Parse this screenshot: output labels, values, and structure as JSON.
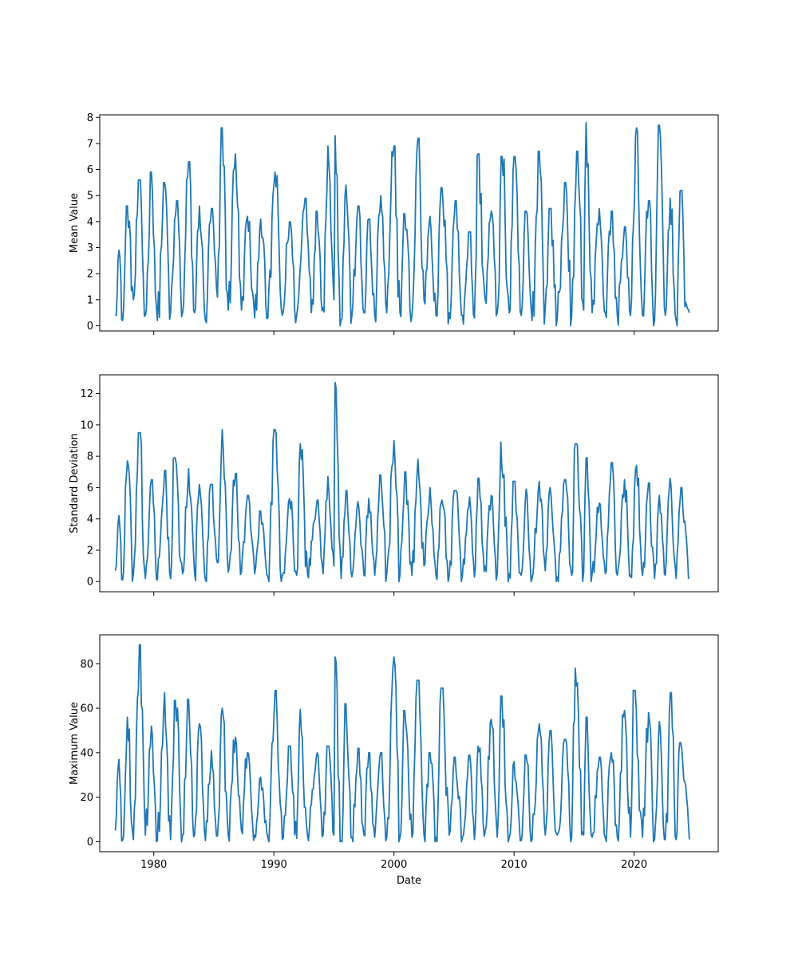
{
  "colors": {
    "line": "#1f77b4",
    "axes": "#000000",
    "background": "#ffffff"
  },
  "chart_data": [
    {
      "type": "line",
      "title": "",
      "xlabel": "",
      "ylabel": "Mean Value",
      "xlim": [
        1975.5,
        2027.0
      ],
      "ylim": [
        -0.2,
        8.1
      ],
      "xticks": [
        1980,
        1990,
        2000,
        2010,
        2020
      ],
      "xtick_labels_visible": false,
      "yticks": [
        0,
        1,
        2,
        3,
        4,
        5,
        6,
        7,
        8
      ],
      "ytick_labels": [
        "0",
        "1",
        "2",
        "3",
        "4",
        "5",
        "6",
        "7",
        "8"
      ],
      "grid": false,
      "anchors": [
        [
          1976.8,
          0.45
        ],
        [
          1977.1,
          2.9
        ],
        [
          1977.4,
          0.2
        ],
        [
          1977.8,
          4.6
        ],
        [
          1978.3,
          1.0
        ],
        [
          1978.8,
          5.6
        ],
        [
          1979.3,
          0.4
        ],
        [
          1979.8,
          5.9
        ],
        [
          1980.3,
          0.2
        ],
        [
          1980.9,
          5.5
        ],
        [
          1981.4,
          0.5
        ],
        [
          1981.9,
          4.8
        ],
        [
          1982.4,
          0.5
        ],
        [
          1982.9,
          6.3
        ],
        [
          1983.4,
          0.5
        ],
        [
          1983.8,
          4.6
        ],
        [
          1984.3,
          0.2
        ],
        [
          1984.8,
          4.5
        ],
        [
          1985.3,
          1.1
        ],
        [
          1985.7,
          7.6
        ],
        [
          1986.2,
          0.6
        ],
        [
          1986.8,
          6.6
        ],
        [
          1987.3,
          0.6
        ],
        [
          1987.8,
          4.2
        ],
        [
          1988.4,
          0.3
        ],
        [
          1988.9,
          4.1
        ],
        [
          1989.5,
          0.3
        ],
        [
          1990.1,
          5.9
        ],
        [
          1990.7,
          0.4
        ],
        [
          1991.3,
          4.0
        ],
        [
          1991.9,
          0.4
        ],
        [
          1992.6,
          4.9
        ],
        [
          1993.2,
          1.0
        ],
        [
          1993.6,
          4.4
        ],
        [
          1994.1,
          0.7
        ],
        [
          1994.5,
          6.9
        ],
        [
          1995.0,
          1.0
        ],
        [
          1995.1,
          7.3
        ],
        [
          1995.6,
          0.2
        ],
        [
          1996.0,
          5.4
        ],
        [
          1996.5,
          0.4
        ],
        [
          1997.0,
          4.6
        ],
        [
          1997.5,
          0.5
        ],
        [
          1997.9,
          4.1
        ],
        [
          1998.4,
          0.4
        ],
        [
          1998.9,
          5.0
        ],
        [
          1999.4,
          0.5
        ],
        [
          2000.0,
          6.9
        ],
        [
          2000.5,
          0.5
        ],
        [
          2000.9,
          4.3
        ],
        [
          2001.5,
          0.4
        ],
        [
          2002.0,
          7.2
        ],
        [
          2002.5,
          1.0
        ],
        [
          2003.0,
          4.2
        ],
        [
          2003.5,
          0.4
        ],
        [
          2004.0,
          5.3
        ],
        [
          2004.6,
          0.5
        ],
        [
          2005.1,
          4.8
        ],
        [
          2005.7,
          0.4
        ],
        [
          2006.3,
          3.6
        ],
        [
          2006.7,
          0.3
        ],
        [
          2007.0,
          6.6
        ],
        [
          2007.6,
          1.0
        ],
        [
          2008.1,
          4.4
        ],
        [
          2008.6,
          0.5
        ],
        [
          2009.0,
          6.5
        ],
        [
          2009.6,
          0.5
        ],
        [
          2010.0,
          6.5
        ],
        [
          2010.6,
          0.4
        ],
        [
          2011.0,
          4.4
        ],
        [
          2011.5,
          0.2
        ],
        [
          2012.1,
          6.7
        ],
        [
          2012.6,
          0.7
        ],
        [
          2013.0,
          4.5
        ],
        [
          2013.6,
          0.3
        ],
        [
          2014.3,
          5.5
        ],
        [
          2014.8,
          0.4
        ],
        [
          2015.3,
          6.7
        ],
        [
          2015.8,
          0.6
        ],
        [
          2016.0,
          7.8
        ],
        [
          2016.5,
          0.5
        ],
        [
          2017.1,
          4.5
        ],
        [
          2017.6,
          0.5
        ],
        [
          2018.1,
          4.4
        ],
        [
          2018.6,
          0.4
        ],
        [
          2019.2,
          3.8
        ],
        [
          2019.7,
          0.4
        ],
        [
          2020.2,
          7.6
        ],
        [
          2020.7,
          0.4
        ],
        [
          2021.2,
          4.8
        ],
        [
          2021.7,
          0.2
        ],
        [
          2022.1,
          7.7
        ],
        [
          2022.6,
          0.4
        ],
        [
          2023.0,
          4.9
        ],
        [
          2023.5,
          0.2
        ],
        [
          2023.9,
          5.2
        ],
        [
          2024.3,
          0.9
        ],
        [
          2024.6,
          0.5
        ]
      ]
    },
    {
      "type": "line",
      "title": "",
      "xlabel": "",
      "ylabel": "Standard Deviation",
      "xlim": [
        1975.5,
        2027.0
      ],
      "ylim": [
        -0.65,
        13.2
      ],
      "xticks": [
        1980,
        1990,
        2000,
        2010,
        2020
      ],
      "xtick_labels_visible": false,
      "yticks": [
        0,
        2,
        4,
        6,
        8,
        10,
        12
      ],
      "ytick_labels": [
        "0",
        "2",
        "4",
        "6",
        "8",
        "10",
        "12"
      ],
      "grid": false,
      "anchors": [
        [
          1976.8,
          0.7
        ],
        [
          1977.1,
          4.2
        ],
        [
          1977.4,
          0.1
        ],
        [
          1977.8,
          7.7
        ],
        [
          1978.3,
          0.5
        ],
        [
          1978.8,
          9.5
        ],
        [
          1979.3,
          0.2
        ],
        [
          1979.8,
          6.5
        ],
        [
          1980.3,
          0.1
        ],
        [
          1980.9,
          7.1
        ],
        [
          1981.4,
          0.2
        ],
        [
          1981.7,
          7.9
        ],
        [
          1982.4,
          0.5
        ],
        [
          1982.9,
          7.2
        ],
        [
          1983.4,
          0.5
        ],
        [
          1983.8,
          6.2
        ],
        [
          1984.3,
          0.1
        ],
        [
          1984.8,
          6.2
        ],
        [
          1985.3,
          1.2
        ],
        [
          1985.7,
          9.7
        ],
        [
          1986.2,
          0.6
        ],
        [
          1986.8,
          6.9
        ],
        [
          1987.3,
          0.6
        ],
        [
          1987.8,
          5.5
        ],
        [
          1988.4,
          0.5
        ],
        [
          1988.9,
          4.5
        ],
        [
          1989.5,
          0.3
        ],
        [
          1990.1,
          9.7
        ],
        [
          1990.7,
          0.4
        ],
        [
          1991.3,
          5.3
        ],
        [
          1991.9,
          0.4
        ],
        [
          1992.2,
          8.8
        ],
        [
          1992.8,
          0.5
        ],
        [
          1993.6,
          5.2
        ],
        [
          1994.1,
          0.5
        ],
        [
          1994.5,
          6.7
        ],
        [
          1995.0,
          1.0
        ],
        [
          1995.1,
          12.7
        ],
        [
          1995.6,
          0.2
        ],
        [
          1996.0,
          5.8
        ],
        [
          1996.5,
          0.3
        ],
        [
          1997.0,
          5.1
        ],
        [
          1997.5,
          0.4
        ],
        [
          1997.9,
          5.3
        ],
        [
          1998.4,
          0.4
        ],
        [
          1998.9,
          6.8
        ],
        [
          1999.4,
          0.5
        ],
        [
          2000.0,
          9.0
        ],
        [
          2000.5,
          0.4
        ],
        [
          2000.9,
          7.0
        ],
        [
          2001.5,
          0.4
        ],
        [
          2002.0,
          7.8
        ],
        [
          2002.5,
          1.0
        ],
        [
          2003.0,
          6.0
        ],
        [
          2003.5,
          0.4
        ],
        [
          2004.0,
          5.2
        ],
        [
          2004.6,
          0.4
        ],
        [
          2005.1,
          5.8
        ],
        [
          2005.7,
          0.4
        ],
        [
          2006.3,
          5.4
        ],
        [
          2006.7,
          0.3
        ],
        [
          2007.0,
          6.6
        ],
        [
          2007.6,
          1.0
        ],
        [
          2008.1,
          5.5
        ],
        [
          2008.6,
          0.5
        ],
        [
          2008.9,
          8.9
        ],
        [
          2009.6,
          0.5
        ],
        [
          2010.0,
          6.4
        ],
        [
          2010.6,
          0.4
        ],
        [
          2011.0,
          5.9
        ],
        [
          2011.5,
          0.2
        ],
        [
          2012.1,
          6.4
        ],
        [
          2012.6,
          0.7
        ],
        [
          2013.0,
          6.0
        ],
        [
          2013.6,
          0.3
        ],
        [
          2014.3,
          6.5
        ],
        [
          2014.8,
          0.4
        ],
        [
          2015.1,
          8.8
        ],
        [
          2015.8,
          0.6
        ],
        [
          2016.0,
          7.9
        ],
        [
          2016.5,
          0.5
        ],
        [
          2017.1,
          5.0
        ],
        [
          2017.6,
          0.5
        ],
        [
          2018.1,
          7.6
        ],
        [
          2018.6,
          0.4
        ],
        [
          2019.2,
          6.5
        ],
        [
          2019.7,
          0.4
        ],
        [
          2020.2,
          7.4
        ],
        [
          2020.7,
          0.4
        ],
        [
          2021.2,
          6.3
        ],
        [
          2021.7,
          0.2
        ],
        [
          2022.1,
          5.5
        ],
        [
          2022.6,
          0.4
        ],
        [
          2023.0,
          6.6
        ],
        [
          2023.5,
          0.2
        ],
        [
          2023.9,
          6.0
        ],
        [
          2024.3,
          3.2
        ],
        [
          2024.6,
          0.2
        ]
      ]
    },
    {
      "type": "line",
      "title": "",
      "xlabel": "Date",
      "ylabel": "Maximum Value",
      "xlim": [
        1975.5,
        2027.0
      ],
      "ylim": [
        -4.5,
        93.0
      ],
      "xticks": [
        1980,
        1990,
        2000,
        2010,
        2020
      ],
      "xtick_labels": [
        "1980",
        "1990",
        "2000",
        "2010",
        "2020"
      ],
      "yticks": [
        0,
        20,
        40,
        60,
        80
      ],
      "ytick_labels": [
        "0",
        "20",
        "40",
        "60",
        "80"
      ],
      "grid": false,
      "anchors": [
        [
          1976.8,
          5.0
        ],
        [
          1977.1,
          37.0
        ],
        [
          1977.4,
          0.5
        ],
        [
          1977.8,
          56.0
        ],
        [
          1978.3,
          1.0
        ],
        [
          1978.8,
          88.5
        ],
        [
          1979.3,
          3.0
        ],
        [
          1979.8,
          52.0
        ],
        [
          1980.3,
          0.5
        ],
        [
          1980.9,
          67.0
        ],
        [
          1981.4,
          1.0
        ],
        [
          1981.8,
          63.5
        ],
        [
          1982.4,
          3.0
        ],
        [
          1982.9,
          64.0
        ],
        [
          1983.4,
          3.0
        ],
        [
          1983.8,
          53.0
        ],
        [
          1984.3,
          0.5
        ],
        [
          1984.8,
          41.0
        ],
        [
          1985.3,
          2.5
        ],
        [
          1985.7,
          60.0
        ],
        [
          1986.2,
          3.0
        ],
        [
          1986.8,
          47.0
        ],
        [
          1987.3,
          5.0
        ],
        [
          1987.8,
          40.0
        ],
        [
          1988.4,
          3.0
        ],
        [
          1988.9,
          29.0
        ],
        [
          1989.5,
          2.0
        ],
        [
          1990.1,
          68.0
        ],
        [
          1990.7,
          1.0
        ],
        [
          1991.3,
          43.0
        ],
        [
          1991.9,
          1.5
        ],
        [
          1992.2,
          59.5
        ],
        [
          1992.8,
          3.0
        ],
        [
          1993.6,
          40.0
        ],
        [
          1994.1,
          3.0
        ],
        [
          1994.5,
          43.0
        ],
        [
          1995.0,
          3.0
        ],
        [
          1995.1,
          83.0
        ],
        [
          1995.6,
          0.5
        ],
        [
          1996.0,
          62.0
        ],
        [
          1996.5,
          2.0
        ],
        [
          1997.0,
          42.0
        ],
        [
          1997.5,
          3.0
        ],
        [
          1997.9,
          40.0
        ],
        [
          1998.4,
          2.0
        ],
        [
          1998.9,
          40.0
        ],
        [
          1999.4,
          2.0
        ],
        [
          2000.0,
          83.0
        ],
        [
          2000.5,
          2.0
        ],
        [
          2000.9,
          59.0
        ],
        [
          2001.5,
          2.0
        ],
        [
          2002.0,
          72.5
        ],
        [
          2002.5,
          3.0
        ],
        [
          2003.0,
          40.0
        ],
        [
          2003.5,
          2.0
        ],
        [
          2004.0,
          69.0
        ],
        [
          2004.6,
          3.0
        ],
        [
          2005.1,
          38.0
        ],
        [
          2005.7,
          2.0
        ],
        [
          2006.3,
          39.0
        ],
        [
          2006.7,
          1.0
        ],
        [
          2007.0,
          43.0
        ],
        [
          2007.6,
          5.0
        ],
        [
          2008.1,
          55.0
        ],
        [
          2008.6,
          2.0
        ],
        [
          2008.9,
          65.5
        ],
        [
          2009.6,
          2.0
        ],
        [
          2010.0,
          36.0
        ],
        [
          2010.6,
          0.5
        ],
        [
          2011.0,
          39.0
        ],
        [
          2011.5,
          1.0
        ],
        [
          2012.1,
          53.0
        ],
        [
          2012.6,
          3.0
        ],
        [
          2013.0,
          50.0
        ],
        [
          2013.6,
          3.0
        ],
        [
          2014.3,
          46.0
        ],
        [
          2014.8,
          2.0
        ],
        [
          2015.1,
          78.0
        ],
        [
          2015.8,
          3.0
        ],
        [
          2016.0,
          56.0
        ],
        [
          2016.5,
          2.0
        ],
        [
          2017.1,
          38.0
        ],
        [
          2017.6,
          2.0
        ],
        [
          2018.1,
          40.0
        ],
        [
          2018.6,
          2.0
        ],
        [
          2019.2,
          59.0
        ],
        [
          2019.7,
          2.0
        ],
        [
          2020.0,
          68.0
        ],
        [
          2020.7,
          2.0
        ],
        [
          2021.2,
          58.0
        ],
        [
          2021.7,
          1.0
        ],
        [
          2022.1,
          54.0
        ],
        [
          2022.6,
          1.0
        ],
        [
          2023.1,
          67.0
        ],
        [
          2023.5,
          1.0
        ],
        [
          2023.8,
          44.5
        ],
        [
          2024.3,
          25.0
        ],
        [
          2024.6,
          1.0
        ]
      ]
    }
  ]
}
